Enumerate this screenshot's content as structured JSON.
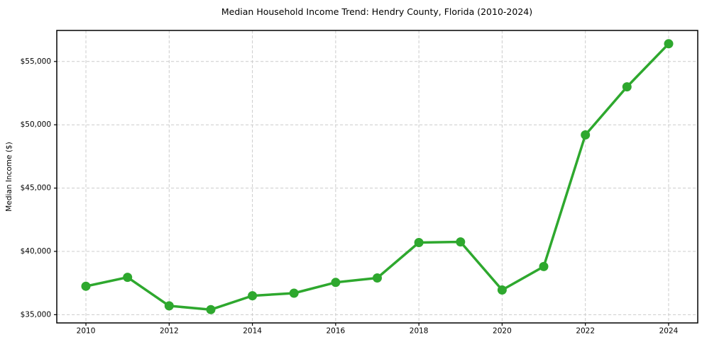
{
  "chart_data": {
    "type": "line",
    "title": "Median Household Income Trend: Hendry County, Florida (2010-2024)",
    "xlabel": "",
    "ylabel": "Median Income ($)",
    "x": [
      2010,
      2011,
      2012,
      2013,
      2014,
      2015,
      2016,
      2017,
      2018,
      2019,
      2020,
      2021,
      2022,
      2023,
      2024
    ],
    "values": [
      37250,
      37950,
      35700,
      35400,
      36500,
      36700,
      37550,
      37900,
      40700,
      40750,
      36950,
      38800,
      49200,
      53000,
      56400
    ],
    "xticks": [
      2010,
      2012,
      2014,
      2016,
      2018,
      2020,
      2022,
      2024
    ],
    "xtick_labels": [
      "2010",
      "2012",
      "2014",
      "2016",
      "2018",
      "2020",
      "2022",
      "2024"
    ],
    "yticks": [
      35000,
      40000,
      45000,
      50000,
      55000
    ],
    "ytick_labels": [
      "$35,000",
      "$40,000",
      "$45,000",
      "$50,000",
      "$55,000"
    ],
    "xlim": [
      2009.3,
      2024.7
    ],
    "ylim": [
      34350,
      57450
    ],
    "grid": true,
    "grid_style": "dashed",
    "legend": null,
    "line_color": "#2ea82e",
    "grid_color": "#cccccc",
    "spine_color": "#000000",
    "text_color": "#000000",
    "background_color": "#ffffff",
    "marker": "circle",
    "marker_radius": 6.5,
    "line_width": 3.5
  }
}
